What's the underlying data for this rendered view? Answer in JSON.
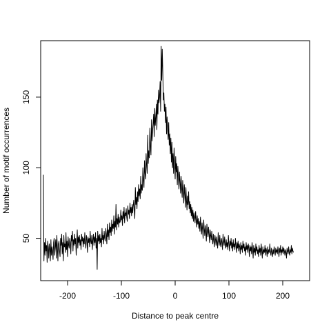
{
  "chart_data": {
    "type": "line",
    "title": "",
    "xlabel": "Distance to peak centre",
    "ylabel": "Number of motif occurrences",
    "xlim": [
      -250,
      250
    ],
    "ylim": [
      20,
      190
    ],
    "xticks": [
      -200,
      -100,
      0,
      100,
      200
    ],
    "yticks": [
      50,
      100,
      150
    ],
    "grid": false,
    "line_color": "#000000",
    "x_start": -245,
    "x_step": 1,
    "values": [
      95,
      34,
      47,
      38,
      50,
      41,
      45,
      33,
      48,
      44,
      36,
      46,
      42,
      34,
      49,
      38,
      44,
      41,
      35,
      47,
      50,
      38,
      44,
      49,
      36,
      52,
      44,
      34,
      46,
      48,
      41,
      37,
      50,
      45,
      53,
      39,
      47,
      34,
      52,
      44,
      46,
      40,
      54,
      42,
      48,
      37,
      51,
      45,
      43,
      50,
      47,
      39,
      52,
      48,
      55,
      41,
      49,
      45,
      53,
      46,
      50,
      38,
      48,
      56,
      43,
      51,
      47,
      52,
      45,
      49,
      42,
      53,
      48,
      51,
      44,
      50,
      46,
      54,
      47,
      43,
      52,
      49,
      40,
      51,
      47,
      50,
      44,
      55,
      48,
      46,
      52,
      42,
      49,
      53,
      45,
      51,
      47,
      54,
      43,
      50,
      28,
      55,
      48,
      52,
      46,
      53,
      47,
      50,
      44,
      57,
      49,
      52,
      46,
      55,
      50,
      48,
      57,
      53,
      46,
      60,
      51,
      56,
      49,
      61,
      54,
      58,
      52,
      63,
      55,
      60,
      57,
      66,
      53,
      62,
      58,
      74,
      56,
      64,
      60,
      67,
      58,
      65,
      61,
      62,
      70,
      63,
      66,
      59,
      69,
      64,
      72,
      61,
      68,
      66,
      71,
      65,
      62,
      73,
      67,
      70,
      64,
      75,
      68,
      72,
      66,
      74,
      68,
      73,
      77,
      70,
      64,
      86,
      74,
      79,
      71,
      83,
      76,
      88,
      80,
      85,
      78,
      94,
      82,
      88,
      84,
      100,
      91,
      86,
      105,
      96,
      92,
      110,
      101,
      96,
      123,
      103,
      112,
      107,
      128,
      115,
      109,
      134,
      119,
      126,
      131,
      138,
      122,
      142,
      130,
      136,
      145,
      127,
      148,
      138,
      155,
      146,
      150,
      161,
      140,
      186,
      162,
      184,
      168,
      148,
      153,
      140,
      145,
      132,
      143,
      124,
      136,
      128,
      120,
      132,
      116,
      124,
      110,
      121,
      104,
      118,
      100,
      110,
      96,
      114,
      102,
      92,
      108,
      97,
      103,
      88,
      101,
      94,
      85,
      97,
      90,
      82,
      94,
      86,
      79,
      91,
      84,
      75,
      88,
      81,
      72,
      86,
      77,
      70,
      80,
      74,
      83,
      71,
      76,
      68,
      74,
      66,
      72,
      64,
      70,
      62,
      68,
      65,
      61,
      69,
      63,
      58,
      66,
      60,
      64,
      57,
      62,
      55,
      65,
      59,
      53,
      61,
      56,
      50,
      63,
      57,
      52,
      59,
      54,
      48,
      60,
      55,
      51,
      58,
      53,
      47,
      56,
      52,
      49,
      55,
      50,
      46,
      53,
      48,
      44,
      52,
      49,
      45,
      51,
      47,
      43,
      54,
      48,
      45,
      52,
      46,
      44,
      50,
      47,
      42,
      53,
      48,
      45,
      51,
      46,
      43,
      49,
      44,
      47,
      42,
      52,
      46,
      41,
      48,
      45,
      50,
      43,
      47,
      41,
      49,
      44,
      46,
      42,
      50,
      45,
      40,
      47,
      43,
      48,
      41,
      46,
      44,
      39,
      47,
      42,
      45,
      40,
      48,
      43,
      46,
      41,
      44,
      38,
      47,
      42,
      45,
      40,
      46,
      43,
      37,
      45,
      41,
      44,
      39,
      47,
      42,
      36,
      45,
      40,
      43,
      38,
      46,
      41,
      44,
      39,
      42,
      37,
      45,
      40,
      43,
      38,
      46,
      41,
      36,
      44,
      39,
      42,
      40,
      45,
      38,
      43,
      41,
      37,
      44,
      39,
      42,
      40,
      46,
      41,
      38,
      43,
      40,
      37,
      42,
      39,
      44,
      41,
      38,
      43,
      40,
      42,
      39,
      44,
      41,
      37,
      43,
      40,
      45,
      38,
      42,
      40,
      44,
      39,
      43,
      41,
      38,
      42,
      40,
      36,
      43,
      41,
      39,
      44,
      40,
      38,
      42,
      40,
      45,
      39,
      43,
      41,
      40
    ]
  }
}
